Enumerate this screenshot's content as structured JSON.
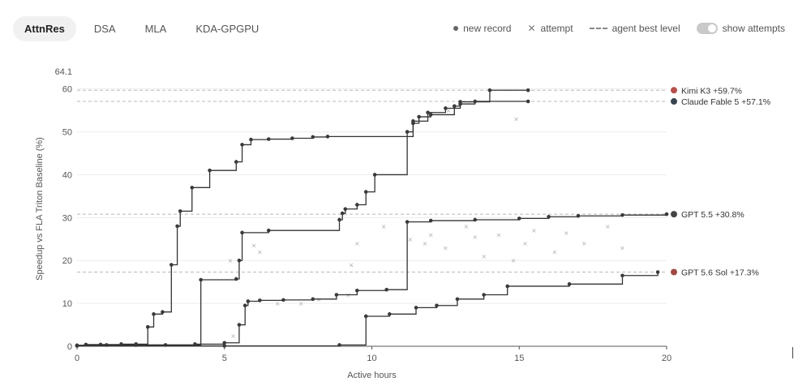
{
  "tabs": [
    {
      "label": "AttnRes",
      "active": true
    },
    {
      "label": "DSA",
      "active": false
    },
    {
      "label": "MLA",
      "active": false
    },
    {
      "label": "KDA-GPGPU",
      "active": false
    }
  ],
  "legend": {
    "new_record": "new record",
    "attempt": "attempt",
    "agent_best": "agent best level",
    "show_attempts": "show attempts",
    "show_attempts_on": true
  },
  "chart_data": {
    "type": "line",
    "xlabel": "Active hours",
    "ylabel": "Speedup vs FLA Triton Baseline (%)",
    "xlim": [
      0,
      20
    ],
    "ylim": [
      0,
      64.1
    ],
    "ymax_label": "64.1",
    "xticks": [
      0,
      5,
      10,
      15,
      20
    ],
    "yticks": [
      0,
      10,
      20,
      30,
      40,
      50,
      60
    ],
    "grid": "horizontal",
    "series": [
      {
        "name": "Kimi K3",
        "end_label": "Kimi K3 +59.7%",
        "color": "#b5504a",
        "best": 59.7,
        "points": [
          [
            0,
            0.2
          ],
          [
            0.3,
            0.4
          ],
          [
            0.8,
            0.4
          ],
          [
            1.5,
            0.5
          ],
          [
            2.0,
            0.5
          ],
          [
            2.4,
            4.5
          ],
          [
            2.6,
            7.5
          ],
          [
            2.9,
            8.0
          ],
          [
            3.2,
            19.0
          ],
          [
            3.4,
            28.0
          ],
          [
            3.5,
            31.5
          ],
          [
            3.9,
            37.0
          ],
          [
            4.5,
            41.0
          ],
          [
            5.4,
            43.0
          ],
          [
            5.6,
            47.0
          ],
          [
            5.9,
            48.2
          ],
          [
            6.5,
            48.3
          ],
          [
            7.3,
            48.5
          ],
          [
            8.0,
            48.8
          ],
          [
            8.5,
            48.9
          ],
          [
            11.4,
            52.0
          ],
          [
            11.6,
            53.5
          ],
          [
            12.0,
            54.0
          ],
          [
            12.8,
            56.0
          ],
          [
            13.0,
            57.0
          ],
          [
            14.0,
            59.7
          ],
          [
            15.3,
            59.7
          ]
        ]
      },
      {
        "name": "Claude Fable 5",
        "end_label": "Claude Fable 5 +57.1%",
        "color": "#38444f",
        "best": 57.1,
        "points": [
          [
            0,
            0.2
          ],
          [
            1.0,
            0.3
          ],
          [
            2.0,
            0.3
          ],
          [
            3.0,
            0.3
          ],
          [
            4.2,
            15.5
          ],
          [
            5.4,
            15.7
          ],
          [
            5.5,
            20.0
          ],
          [
            5.6,
            26.5
          ],
          [
            6.5,
            27.0
          ],
          [
            8.9,
            29.5
          ],
          [
            9.0,
            31.0
          ],
          [
            9.1,
            32.0
          ],
          [
            9.5,
            33.0
          ],
          [
            9.8,
            36.0
          ],
          [
            10.1,
            40.0
          ],
          [
            11.2,
            50.0
          ],
          [
            11.4,
            52.5
          ],
          [
            11.9,
            54.5
          ],
          [
            12.5,
            55.5
          ],
          [
            13.0,
            56.5
          ],
          [
            13.5,
            57.1
          ],
          [
            15.3,
            57.1
          ]
        ]
      },
      {
        "name": "GPT 5.5",
        "end_label": "GPT 5.5 +30.8%",
        "color": "#444444",
        "best": 30.8,
        "points": [
          [
            0,
            0.2
          ],
          [
            2.0,
            0.3
          ],
          [
            4.0,
            0.5
          ],
          [
            5.0,
            0.8
          ],
          [
            5.5,
            5.0
          ],
          [
            5.7,
            9.5
          ],
          [
            5.8,
            10.5
          ],
          [
            6.2,
            10.7
          ],
          [
            7.0,
            10.8
          ],
          [
            8.0,
            11.0
          ],
          [
            8.8,
            12.0
          ],
          [
            9.5,
            13.0
          ],
          [
            10.5,
            13.2
          ],
          [
            11.2,
            29.0
          ],
          [
            12.0,
            29.3
          ],
          [
            13.5,
            29.5
          ],
          [
            15.0,
            29.8
          ],
          [
            16.0,
            30.2
          ],
          [
            17.0,
            30.4
          ],
          [
            18.5,
            30.6
          ],
          [
            20.0,
            30.8
          ]
        ]
      },
      {
        "name": "GPT 5.6 Sol",
        "end_label": "GPT 5.6 Sol +17.3%",
        "color": "#a04a45",
        "best": 17.3,
        "points": [
          [
            0,
            0.1
          ],
          [
            5.0,
            0.1
          ],
          [
            8.9,
            0.3
          ],
          [
            9.8,
            7.0
          ],
          [
            10.6,
            7.5
          ],
          [
            11.5,
            9.0
          ],
          [
            12.2,
            9.5
          ],
          [
            12.9,
            11.0
          ],
          [
            13.8,
            12.0
          ],
          [
            14.6,
            14.0
          ],
          [
            16.7,
            14.5
          ],
          [
            18.5,
            16.5
          ],
          [
            19.7,
            17.3
          ]
        ]
      }
    ],
    "attempts": [
      [
        5.2,
        20.0
      ],
      [
        6.0,
        23.5
      ],
      [
        6.2,
        22.0
      ],
      [
        9.3,
        19.0
      ],
      [
        9.5,
        24.0
      ],
      [
        9.2,
        12.0
      ],
      [
        11.3,
        25.0
      ],
      [
        12.0,
        26.0
      ],
      [
        12.5,
        23.0
      ],
      [
        13.2,
        28.0
      ],
      [
        13.8,
        21.0
      ],
      [
        14.3,
        26.0
      ],
      [
        14.8,
        20.0
      ],
      [
        15.2,
        24.0
      ],
      [
        15.5,
        27.0
      ],
      [
        16.2,
        22.0
      ],
      [
        16.6,
        26.5
      ],
      [
        17.2,
        24.0
      ],
      [
        18.0,
        28.0
      ],
      [
        18.5,
        23.0
      ],
      [
        14.9,
        53.0
      ],
      [
        12.6,
        55.0
      ],
      [
        6.8,
        10.0
      ],
      [
        7.6,
        10.0
      ],
      [
        8.2,
        11.0
      ],
      [
        5.3,
        2.5
      ],
      [
        10.4,
        28.0
      ],
      [
        11.8,
        24.0
      ],
      [
        13.5,
        25.5
      ]
    ]
  }
}
